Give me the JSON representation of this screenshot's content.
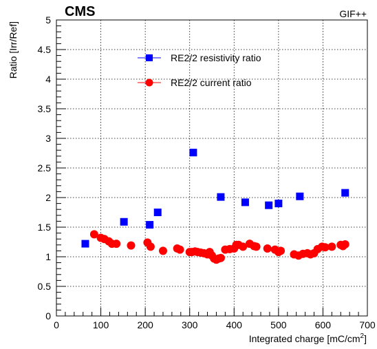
{
  "labels": {
    "experiment": "CMS",
    "facility": "GIF++"
  },
  "chart_data": {
    "type": "scatter",
    "xlabel": "Integrated charge [mC/cm",
    "xlabel_superscript": "2",
    "xlabel_close": "]",
    "ylabel": "Ratio [Irr/Ref]",
    "xlim": [
      0,
      700
    ],
    "ylim": [
      0,
      5
    ],
    "x_ticks": [
      "0",
      "100",
      "200",
      "300",
      "400",
      "500",
      "600",
      "700"
    ],
    "y_ticks": [
      "0",
      "0.5",
      "1",
      "1.5",
      "2",
      "2.5",
      "3",
      "3.5",
      "4",
      "4.5",
      "5"
    ],
    "grid": true,
    "legend_position": "top-center",
    "series": [
      {
        "name": "RE2/2 resistivity ratio",
        "marker": "square",
        "color": "#0000ff",
        "x": [
          65,
          152,
          210,
          228,
          308,
          370,
          425,
          478,
          500,
          548,
          650
        ],
        "y": [
          1.22,
          1.59,
          1.54,
          1.75,
          2.76,
          2.01,
          1.92,
          1.87,
          1.9,
          2.02,
          2.08
        ]
      },
      {
        "name": "RE2/2 current ratio",
        "marker": "circle",
        "color": "#ff0000",
        "x": [
          85,
          100,
          108,
          118,
          125,
          135,
          168,
          205,
          212,
          240,
          272,
          278,
          300,
          305,
          312,
          318,
          325,
          332,
          340,
          345,
          350,
          355,
          360,
          365,
          370,
          380,
          390,
          400,
          405,
          410,
          420,
          435,
          445,
          450,
          475,
          492,
          500,
          505,
          535,
          545,
          555,
          565,
          572,
          580,
          588,
          598,
          605,
          620,
          640,
          645,
          650
        ],
        "y": [
          1.38,
          1.32,
          1.3,
          1.26,
          1.22,
          1.22,
          1.19,
          1.24,
          1.17,
          1.1,
          1.14,
          1.12,
          1.08,
          1.08,
          1.09,
          1.08,
          1.07,
          1.06,
          1.04,
          1.08,
          1.02,
          0.97,
          0.95,
          0.97,
          0.98,
          1.12,
          1.13,
          1.14,
          1.2,
          1.2,
          1.17,
          1.22,
          1.18,
          1.17,
          1.14,
          1.12,
          1.08,
          1.1,
          1.04,
          1.02,
          1.05,
          1.06,
          1.04,
          1.06,
          1.13,
          1.17,
          1.16,
          1.17,
          1.2,
          1.18,
          1.21
        ]
      }
    ]
  }
}
